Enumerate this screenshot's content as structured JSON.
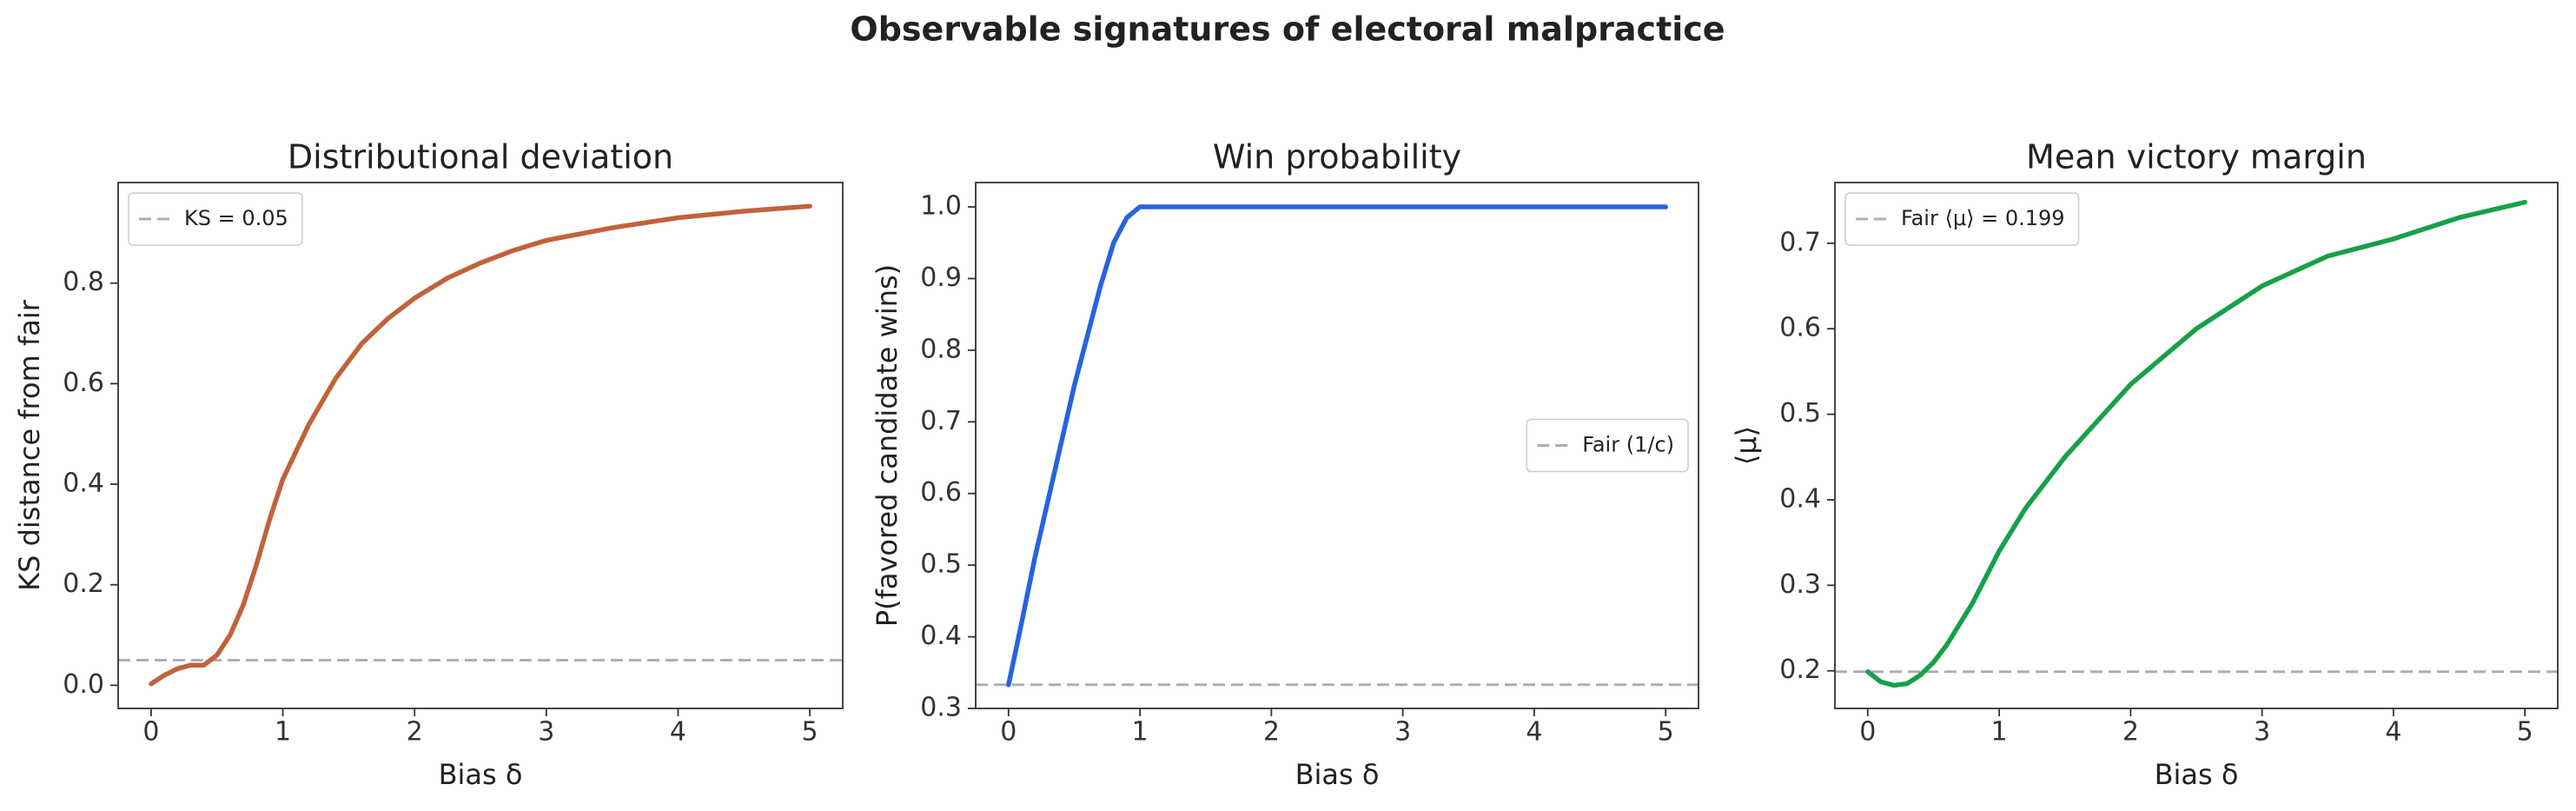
{
  "suptitle": "Observable signatures of electoral malpractice",
  "chart_data": [
    {
      "type": "line",
      "title": "Distributional deviation",
      "xlabel": "Bias δ",
      "ylabel": "KS distance from fair",
      "x": [
        0,
        0.1,
        0.2,
        0.3,
        0.4,
        0.5,
        0.6,
        0.7,
        0.8,
        0.9,
        1.0,
        1.2,
        1.4,
        1.6,
        1.8,
        2.0,
        2.25,
        2.5,
        2.75,
        3.0,
        3.5,
        4.0,
        4.5,
        5.0
      ],
      "series": [
        {
          "color": "#c0633a",
          "values": [
            0.003,
            0.02,
            0.033,
            0.04,
            0.04,
            0.06,
            0.1,
            0.16,
            0.24,
            0.33,
            0.41,
            0.52,
            0.61,
            0.68,
            0.73,
            0.77,
            0.81,
            0.84,
            0.865,
            0.885,
            0.91,
            0.93,
            0.943,
            0.953
          ]
        }
      ],
      "reference_lines": [
        {
          "name": "KS = 0.05",
          "value": 0.05,
          "color": "#aab0b8"
        }
      ],
      "legend_loc": "upper left",
      "xlim": [
        -0.25,
        5.25
      ],
      "xticks": [
        0,
        1,
        2,
        3,
        4,
        5
      ],
      "ylim": [
        -0.046,
        1.0
      ],
      "yticks": [
        {
          "value": 0,
          "label": "0.0"
        },
        0.2,
        0.4,
        0.6,
        0.8
      ]
    },
    {
      "type": "line",
      "title": "Win probability",
      "xlabel": "Bias δ",
      "ylabel": "P(favored candidate wins)",
      "x": [
        0,
        0.1,
        0.2,
        0.3,
        0.4,
        0.5,
        0.6,
        0.7,
        0.8,
        0.9,
        1.0,
        1.5,
        2.0,
        3.0,
        4.0,
        5.0
      ],
      "series": [
        {
          "color": "#2962e0",
          "values": [
            0.333,
            0.42,
            0.51,
            0.59,
            0.67,
            0.75,
            0.82,
            0.89,
            0.95,
            0.985,
            1.0,
            1.0,
            1.0,
            1.0,
            1.0,
            1.0
          ]
        }
      ],
      "reference_lines": [
        {
          "name": "Fair (1/c)",
          "value": 0.333,
          "color": "#aab0b8"
        }
      ],
      "legend_loc": "center right",
      "xlim": [
        -0.25,
        5.25
      ],
      "xticks": [
        0,
        1,
        2,
        3,
        4,
        5
      ],
      "ylim": [
        0.3,
        1.034
      ],
      "yticks": [
        {
          "value": 0.3,
          "label": "0.3"
        },
        0.4,
        0.5,
        0.6,
        0.7,
        0.8,
        0.9,
        {
          "value": 1.0,
          "label": "1.0"
        }
      ]
    },
    {
      "type": "line",
      "title": "Mean victory margin",
      "xlabel": "Bias δ",
      "ylabel": "⟨μ⟩",
      "x": [
        0,
        0.1,
        0.2,
        0.3,
        0.4,
        0.5,
        0.6,
        0.8,
        1.0,
        1.2,
        1.5,
        2.0,
        2.5,
        3.0,
        3.5,
        4.0,
        4.5,
        5.0
      ],
      "series": [
        {
          "color": "#17a04a",
          "values": [
            0.199,
            0.187,
            0.183,
            0.185,
            0.195,
            0.21,
            0.23,
            0.28,
            0.34,
            0.39,
            0.45,
            0.535,
            0.6,
            0.65,
            0.685,
            0.705,
            0.73,
            0.748
          ]
        }
      ],
      "reference_lines": [
        {
          "name": "Fair ⟨μ⟩ = 0.199",
          "value": 0.199,
          "color": "#aab0b8"
        }
      ],
      "legend_loc": "upper left",
      "xlim": [
        -0.25,
        5.25
      ],
      "xticks": [
        0,
        1,
        2,
        3,
        4,
        5
      ],
      "ylim": [
        0.156,
        0.771
      ],
      "yticks": [
        0.2,
        0.3,
        0.4,
        0.5,
        0.6,
        0.7
      ]
    }
  ]
}
